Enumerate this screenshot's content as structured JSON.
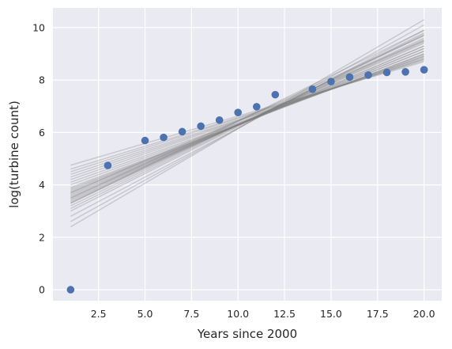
{
  "chart_data": {
    "type": "scatter",
    "title": "",
    "xlabel": "Years since 2000",
    "ylabel": "log(turbine count)",
    "xlim": [
      0.05,
      20.95
    ],
    "ylim": [
      -0.42,
      10.75
    ],
    "xticks": [
      2.5,
      5.0,
      7.5,
      10.0,
      12.5,
      15.0,
      17.5,
      20.0
    ],
    "xtick_labels": [
      "2.5",
      "5.0",
      "7.5",
      "10.0",
      "12.5",
      "15.0",
      "17.5",
      "20.0"
    ],
    "yticks": [
      0,
      2,
      4,
      6,
      8,
      10
    ],
    "ytick_labels": [
      "0",
      "2",
      "4",
      "6",
      "8",
      "10"
    ],
    "grid": true,
    "style": {
      "background": "#eaeaf2",
      "grid_color": "#ffffff",
      "point_color": "#4c72b0",
      "line_color": "#808080"
    },
    "series": [
      {
        "kind": "scatter",
        "x": [
          1,
          3,
          5,
          6,
          7,
          8,
          9,
          10,
          11,
          12,
          14,
          15,
          16,
          17,
          18,
          19,
          20
        ],
        "y": [
          0.0,
          4.74,
          5.69,
          5.81,
          6.03,
          6.24,
          6.47,
          6.76,
          6.98,
          7.44,
          7.65,
          7.94,
          8.11,
          8.19,
          8.29,
          8.31,
          8.39
        ]
      },
      {
        "kind": "lines",
        "x_range": [
          1,
          20
        ],
        "lines": [
          [
            2.4,
            10.3
          ],
          [
            2.6,
            10.1
          ],
          [
            2.8,
            9.9
          ],
          [
            3.0,
            9.8
          ],
          [
            3.1,
            9.75
          ],
          [
            3.2,
            9.7
          ],
          [
            3.3,
            9.6
          ],
          [
            3.35,
            9.55
          ],
          [
            3.4,
            9.5
          ],
          [
            3.45,
            9.45
          ],
          [
            3.5,
            9.4
          ],
          [
            3.55,
            9.3
          ],
          [
            3.6,
            9.3
          ],
          [
            3.65,
            9.2
          ],
          [
            3.7,
            9.2
          ],
          [
            3.75,
            9.1
          ],
          [
            3.8,
            9.1
          ],
          [
            3.85,
            9.0
          ],
          [
            3.9,
            9.0
          ],
          [
            4.0,
            8.95
          ],
          [
            4.1,
            8.9
          ],
          [
            4.2,
            8.9
          ],
          [
            4.3,
            8.85
          ],
          [
            4.4,
            8.8
          ],
          [
            4.5,
            8.8
          ],
          [
            4.6,
            8.75
          ],
          [
            4.75,
            8.7
          ],
          [
            3.5,
            9.7
          ],
          [
            3.7,
            9.5
          ],
          [
            3.3,
            9.9
          ]
        ]
      }
    ]
  }
}
